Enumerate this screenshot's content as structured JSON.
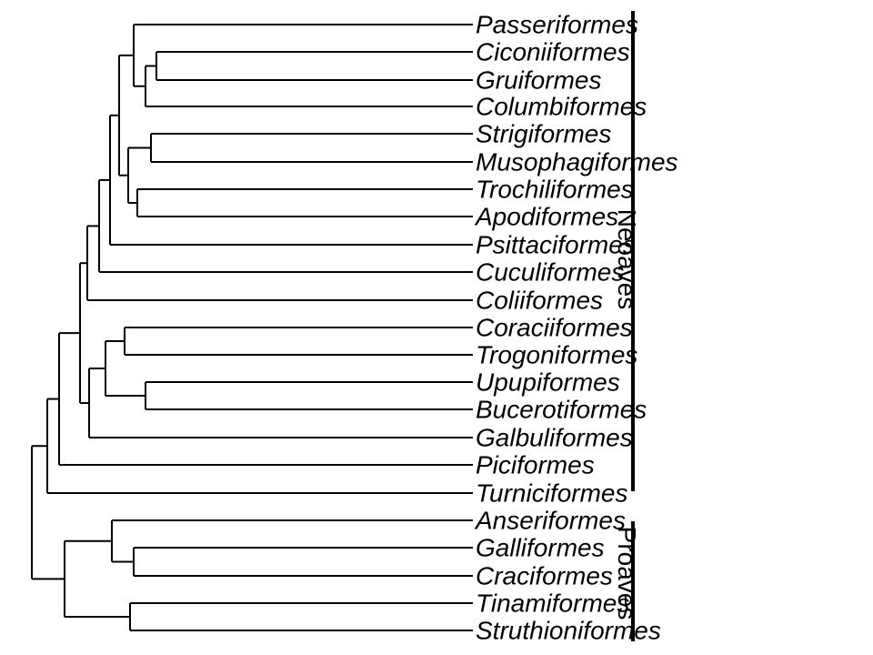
{
  "tree": {
    "tips": [
      "Passeriformes",
      "Ciconiiformes",
      "Gruiformes",
      "Columbiformes",
      "Strigiformes",
      "Musophagiformes",
      "Trochiliformes",
      "Apodiformes",
      "Psittaciformes",
      "Cuculiformes",
      "Coliiformes",
      "Coraciiformes",
      "Trogoniformes",
      "Upupiformes",
      "Bucerotiformes",
      "Galbuliformes",
      "Piciformes",
      "Turniciformes",
      "Anseriformes",
      "Galliformes",
      "Craciformes",
      "Tinamiformes",
      "Struthioniformes"
    ],
    "clades": [
      {
        "name": "Neoaves",
        "first_tip": 0,
        "last_tip": 17
      },
      {
        "name": "Proaves",
        "first_tip": 18,
        "last_tip": 22
      }
    ]
  }
}
